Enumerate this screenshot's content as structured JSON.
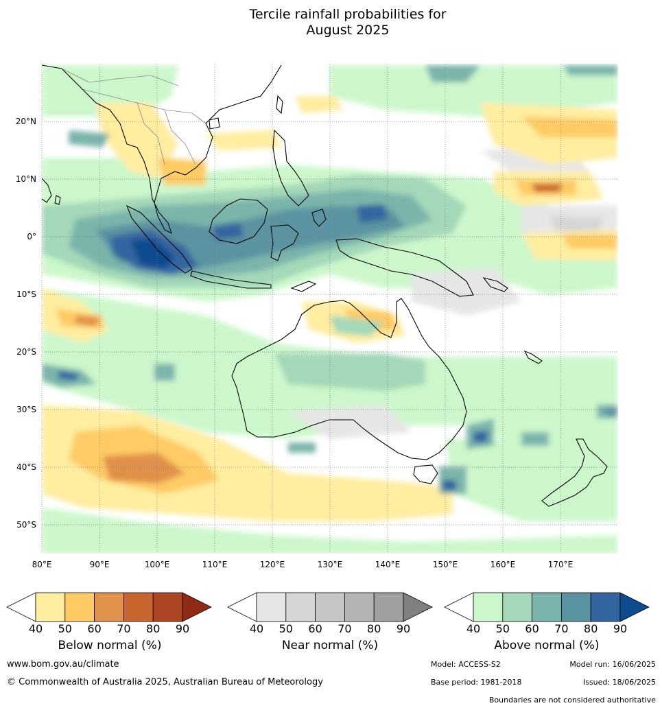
{
  "title": {
    "line1": "Tercile rainfall probabilities for",
    "line2": "August 2025"
  },
  "map": {
    "lon_range": [
      80,
      180
    ],
    "lat_range": [
      -55,
      30
    ],
    "lat_labels": [
      "20°N",
      "10°N",
      "0°",
      "10°S",
      "20°S",
      "30°S",
      "40°S",
      "50°S"
    ],
    "lon_labels": [
      "80°E",
      "90°E",
      "100°E",
      "110°E",
      "120°E",
      "130°E",
      "140°E",
      "150°E",
      "160°E",
      "170°E"
    ]
  },
  "legends": [
    {
      "name": "below",
      "title": "Below normal (%)",
      "ticks": [
        "40",
        "50",
        "60",
        "70",
        "80",
        "90"
      ],
      "colors": [
        "#ffeda0",
        "#fecb65",
        "#e0914a",
        "#c9652f",
        "#ae4523",
        "#8f2a16"
      ]
    },
    {
      "name": "near",
      "title": "Near normal (%)",
      "ticks": [
        "40",
        "50",
        "60",
        "70",
        "80",
        "90"
      ],
      "colors": [
        "#e6e6e6",
        "#d6d6d6",
        "#c6c6c6",
        "#b4b4b4",
        "#a0a0a0",
        "#808080"
      ]
    },
    {
      "name": "above",
      "title": "Above normal (%)",
      "ticks": [
        "40",
        "50",
        "60",
        "70",
        "80",
        "90"
      ],
      "colors": [
        "#ccf7cc",
        "#a3d8b8",
        "#7bb4ac",
        "#5c93a0",
        "#3465a0",
        "#0f4c8f"
      ]
    }
  ],
  "footer": {
    "website": "www.bom.gov.au/climate",
    "copyright": "© Commonwealth of Australia 2025, Australian Bureau of Meteorology",
    "model": "Model: ACCESS-S2",
    "model_run": "Model run: 16/06/2025",
    "base_period": "Base period: 1981-2018",
    "issued": "Issued: 18/06/2025",
    "disclaimer": "Boundaries are not considered authoritative"
  }
}
